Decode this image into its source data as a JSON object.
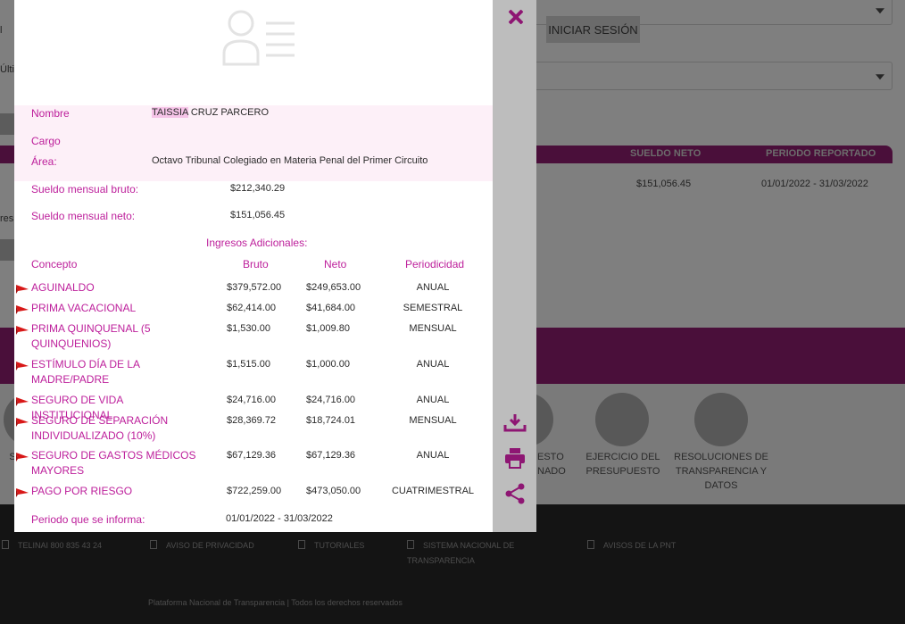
{
  "background": {
    "login_button": "INICIAR SESIÓN",
    "table_headers": [
      "SUELDO NETO",
      "PERIODO REPORTADO"
    ],
    "table_row": {
      "net": "$151,056.45",
      "period": "01/01/2022 - 31/03/2022"
    },
    "fragments": {
      "a": "l",
      "b": "n",
      "c": "Últi",
      "d": "res"
    },
    "tiles": [
      {
        "label": "S"
      },
      {
        "label": "ESTO\nNADO"
      },
      {
        "label": "EJERCICIO DEL\nPRESUPUESTO"
      },
      {
        "label": "RESOLUCIONES DE\nTRANSPARENCIA Y\nDATOS"
      }
    ],
    "footer": {
      "items": [
        "TELINAI 800 835 43 24",
        "AVISO DE PRIVACIDAD",
        "TUTORIALES",
        "SISTEMA NACIONAL DE\nTRANSPARENCIA",
        "AVISOS DE LA PNT"
      ],
      "copyright": "Plataforma Nacional de Transparencia | Todos los derechos reservados"
    }
  },
  "modal": {
    "name_label": "Nombre",
    "name_first": "TAISSIA",
    "name_rest": " CRUZ PARCERO",
    "cargo_label": "Cargo",
    "area_label": "Área:",
    "area_value": "Octavo Tribunal Colegiado en Materia Penal del Primer Circuito",
    "gross_label": "Sueldo mensual bruto:",
    "gross_value": "$212,340.29",
    "net_label": "Sueldo mensual neto:",
    "net_value": "$151,056.45",
    "additional_title": "Ingresos Adicionales:",
    "columns": {
      "concept": "Concepto",
      "gross": "Bruto",
      "net": "Neto",
      "periodicity": "Periodicidad"
    },
    "rows": [
      {
        "concept": "AGUINALDO",
        "gross": "$379,572.00",
        "net": "$249,653.00",
        "periodicity": "ANUAL"
      },
      {
        "concept": "PRIMA VACACIONAL",
        "gross": "$62,414.00",
        "net": "$41,684.00",
        "periodicity": "SEMESTRAL"
      },
      {
        "concept": "PRIMA QUINQUENAL (5 QUINQUENIOS)",
        "gross": "$1,530.00",
        "net": "$1,009.80",
        "periodicity": "MENSUAL"
      },
      {
        "concept": "ESTÍMULO DÍA DE LA MADRE/PADRE",
        "gross": "$1,515.00",
        "net": "$1,000.00",
        "periodicity": "ANUAL"
      },
      {
        "concept": "SEGURO DE VIDA INSTITUCIONAL",
        "gross": "$24,716.00",
        "net": "$24,716.00",
        "periodicity": "ANUAL"
      },
      {
        "concept": "SEGURO DE SEPARACIÓN INDIVIDUALIZADO (10%)",
        "gross": "$28,369.72",
        "net": "$18,724.01",
        "periodicity": "MENSUAL"
      },
      {
        "concept": "SEGURO DE GASTOS MÉDICOS MAYORES",
        "gross": "$67,129.36",
        "net": "$67,129.36",
        "periodicity": "ANUAL"
      },
      {
        "concept": "PAGO POR RIESGO",
        "gross": "$722,259.00",
        "net": "$473,050.00",
        "periodicity": "CUATRIMESTRAL"
      }
    ],
    "period_label": "Periodo que se informa:",
    "period_value": "01/01/2022 - 31/03/2022"
  },
  "colors": {
    "accent": "#bd1f9b",
    "close": "#8e1673",
    "band": "#fdf0f8",
    "side_panel": "#bdbdbd"
  },
  "icons": [
    "close-icon",
    "download-icon",
    "print-icon",
    "share-icon",
    "user-avatar-icon",
    "flag-icon"
  ]
}
